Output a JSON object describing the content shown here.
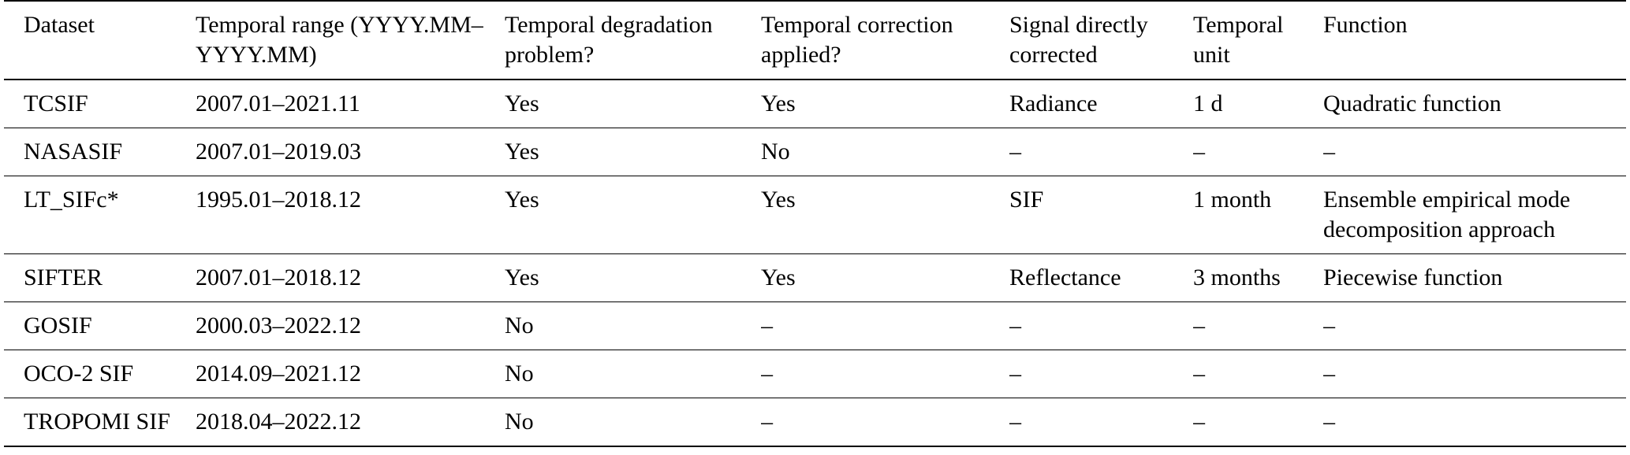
{
  "table": {
    "headers": [
      "Dataset",
      "Temporal range (YYYY.MM–YYYY.MM)",
      "Temporal degradation problem?",
      "Temporal correction applied?",
      "Signal directly corrected",
      "Temporal unit",
      "Function"
    ],
    "rows": [
      {
        "dataset": "TCSIF",
        "temporal_range": "2007.01–2021.11",
        "degradation_problem": "Yes",
        "correction_applied": "Yes",
        "signal_corrected": "Radiance",
        "temporal_unit": "1 d",
        "function": "Quadratic function"
      },
      {
        "dataset": "NASASIF",
        "temporal_range": "2007.01–2019.03",
        "degradation_problem": "Yes",
        "correction_applied": "No",
        "signal_corrected": "–",
        "temporal_unit": "–",
        "function": "–"
      },
      {
        "dataset": "LT_SIFc*",
        "temporal_range": "1995.01–2018.12",
        "degradation_problem": "Yes",
        "correction_applied": "Yes",
        "signal_corrected": "SIF",
        "temporal_unit": "1 month",
        "function": "Ensemble empirical mode decomposition approach"
      },
      {
        "dataset": "SIFTER",
        "temporal_range": "2007.01–2018.12",
        "degradation_problem": "Yes",
        "correction_applied": "Yes",
        "signal_corrected": "Reflectance",
        "temporal_unit": "3 months",
        "function": "Piecewise function"
      },
      {
        "dataset": "GOSIF",
        "temporal_range": "2000.03–2022.12",
        "degradation_problem": "No",
        "correction_applied": "–",
        "signal_corrected": "–",
        "temporal_unit": "–",
        "function": "–"
      },
      {
        "dataset": "OCO-2 SIF",
        "temporal_range": "2014.09–2021.12",
        "degradation_problem": "No",
        "correction_applied": "–",
        "signal_corrected": "–",
        "temporal_unit": "–",
        "function": "–"
      },
      {
        "dataset": "TROPOMI SIF",
        "temporal_range": "2018.04–2022.12",
        "degradation_problem": "No",
        "correction_applied": "–",
        "signal_corrected": "–",
        "temporal_unit": "–",
        "function": "–"
      }
    ]
  }
}
